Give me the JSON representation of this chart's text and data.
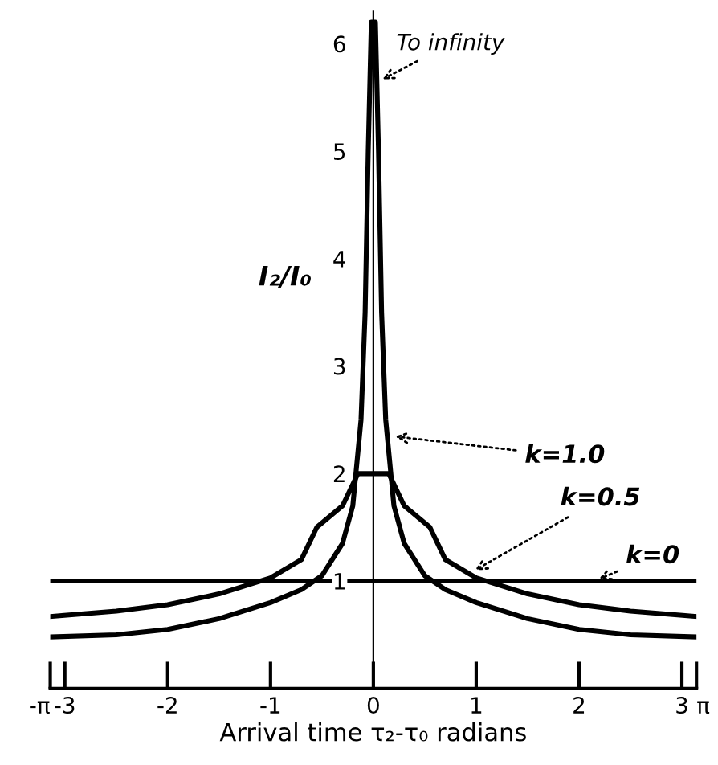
{
  "chart_data": {
    "type": "line",
    "xlabel": "Arrival time τ₂-τ₀ radians",
    "ylabel": "I₂/I₀",
    "xlim": [
      -3.1416,
      3.1416
    ],
    "ylim": [
      0,
      6.3
    ],
    "xticks": [
      {
        "value": -3.1416,
        "label": "-π"
      },
      -3,
      -2,
      -1,
      0,
      1,
      2,
      3,
      {
        "value": 3.1416,
        "label": "π"
      }
    ],
    "yticks": [
      1,
      2,
      3,
      4,
      5,
      6
    ],
    "grid": false,
    "legend": false,
    "marker": "none",
    "line_style": "solid",
    "series": [
      {
        "color": "#000000",
        "x": [
          -3.1416,
          3.1416
        ],
        "values": [
          1,
          1
        ]
      },
      {
        "color": "#000000",
        "x": [
          -3.1416,
          -2.5,
          -2,
          -1.5,
          -1,
          -0.7,
          -0.55,
          -0.3,
          -0.15,
          0,
          0.15,
          0.3,
          0.55,
          0.7,
          1,
          1.5,
          2,
          2.5,
          3.1416
        ],
        "values": [
          0.67,
          0.72,
          0.78,
          0.88,
          1.03,
          1.2,
          1.5,
          1.7,
          2.0,
          2.0,
          2.0,
          1.7,
          1.5,
          1.2,
          1.03,
          0.88,
          0.78,
          0.72,
          0.67
        ]
      },
      {
        "color": "#000000",
        "x": [
          -3.1416,
          -2.5,
          -2,
          -1.5,
          -1,
          -0.7,
          -0.5,
          -0.3,
          -0.2,
          -0.12,
          -0.08,
          -0.05,
          -0.02,
          0.02,
          0.05,
          0.08,
          0.12,
          0.2,
          0.3,
          0.5,
          0.7,
          1,
          1.5,
          2,
          2.5,
          3.1416
        ],
        "values": [
          0.48,
          0.5,
          0.55,
          0.65,
          0.8,
          0.92,
          1.05,
          1.35,
          1.7,
          2.5,
          3.5,
          5,
          6.2,
          6.2,
          5,
          3.5,
          2.5,
          1.7,
          1.35,
          1.05,
          0.92,
          0.8,
          0.65,
          0.55,
          0.5,
          0.48
        ]
      }
    ],
    "annotations": [
      {
        "text": "To infinity",
        "x": 0.05,
        "y": 5.65
      },
      {
        "text": "k=1.0",
        "x": 0.17,
        "y": 2.35
      },
      {
        "text": "k=0.5",
        "x": 0.95,
        "y": 1.08
      },
      {
        "text": "k=0",
        "x": 2.15,
        "y": 1.0
      }
    ]
  }
}
